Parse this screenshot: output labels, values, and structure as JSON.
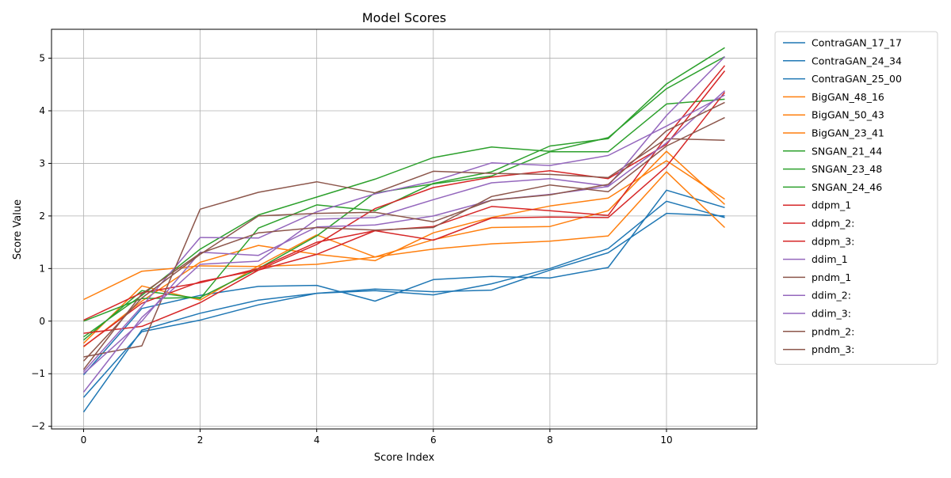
{
  "chart_data": {
    "type": "line",
    "title": "Model Scores",
    "xlabel": "Score Index",
    "ylabel": "Score Value",
    "x": [
      0,
      1,
      2,
      3,
      4,
      5,
      6,
      7,
      8,
      9,
      10,
      11
    ],
    "xlim": [
      -0.55,
      11.55
    ],
    "ylim": [
      -2.05,
      5.55
    ],
    "xticks": [
      0,
      2,
      4,
      6,
      8,
      10
    ],
    "yticks": [
      -2,
      -1,
      0,
      1,
      2,
      3,
      4,
      5
    ],
    "ytick_labels": [
      "−2",
      "−1",
      "0",
      "1",
      "2",
      "3",
      "4",
      "5"
    ],
    "grid": true,
    "legend_placement": "outside right, top",
    "series": [
      {
        "name": "ContraGAN_17_17",
        "color": "#1f77b4",
        "values": [
          -1.73,
          -0.17,
          0.15,
          0.4,
          0.53,
          0.61,
          0.56,
          0.59,
          0.97,
          1.3,
          2.05,
          2.0
        ]
      },
      {
        "name": "ContraGAN_24_34",
        "color": "#1f77b4",
        "values": [
          -1.45,
          -0.2,
          0.02,
          0.31,
          0.53,
          0.58,
          0.5,
          0.71,
          1.0,
          1.38,
          2.28,
          1.97
        ]
      },
      {
        "name": "ContraGAN_25_00",
        "color": "#1f77b4",
        "values": [
          -1.02,
          0.24,
          0.49,
          0.66,
          0.68,
          0.38,
          0.79,
          0.85,
          0.82,
          1.02,
          2.49,
          2.16
        ]
      },
      {
        "name": "BigGAN_48_16",
        "color": "#ff7f0e",
        "values": [
          0.41,
          0.95,
          1.05,
          1.04,
          1.08,
          1.22,
          1.37,
          1.47,
          1.52,
          1.62,
          2.84,
          1.78
        ]
      },
      {
        "name": "BigGAN_50_43",
        "color": "#ff7f0e",
        "values": [
          -0.42,
          0.67,
          0.4,
          1.05,
          1.64,
          1.22,
          1.55,
          1.78,
          1.8,
          2.1,
          3.23,
          2.22
        ]
      },
      {
        "name": "BigGAN_23_41",
        "color": "#ff7f0e",
        "values": [
          -0.49,
          0.38,
          1.12,
          1.44,
          1.27,
          1.15,
          1.68,
          1.97,
          2.19,
          2.34,
          3.05,
          2.32
        ]
      },
      {
        "name": "SNGAN_21_44",
        "color": "#2ca02c",
        "values": [
          -0.36,
          0.58,
          0.43,
          1.77,
          2.21,
          2.1,
          2.62,
          2.84,
          3.33,
          3.47,
          4.51,
          5.2
        ]
      },
      {
        "name": "SNGAN_23_48",
        "color": "#2ca02c",
        "values": [
          -0.3,
          0.49,
          1.37,
          2.02,
          2.36,
          2.7,
          3.11,
          3.31,
          3.23,
          3.49,
          4.42,
          5.03
        ]
      },
      {
        "name": "SNGAN_24_46",
        "color": "#2ca02c",
        "values": [
          0.0,
          0.43,
          0.45,
          1.0,
          1.62,
          2.44,
          2.61,
          2.76,
          3.22,
          3.22,
          4.13,
          4.22
        ]
      },
      {
        "name": "ddpm_1",
        "color": "#d62728",
        "values": [
          0.02,
          0.54,
          0.73,
          1.0,
          1.5,
          1.72,
          1.54,
          1.96,
          1.98,
          1.97,
          2.94,
          4.35
        ]
      },
      {
        "name": "ddpm_2:",
        "color": "#d62728",
        "values": [
          -0.48,
          0.34,
          0.75,
          0.97,
          1.27,
          1.72,
          1.8,
          2.18,
          2.1,
          2.01,
          3.51,
          4.86
        ]
      },
      {
        "name": "ddpm_3:",
        "color": "#d62728",
        "values": [
          -0.23,
          -0.1,
          0.35,
          0.97,
          1.46,
          2.14,
          2.54,
          2.74,
          2.86,
          2.71,
          3.36,
          4.76
        ]
      },
      {
        "name": "ddim_1",
        "color": "#9467bd",
        "values": [
          -0.96,
          0.28,
          1.59,
          1.58,
          2.08,
          2.42,
          2.66,
          3.01,
          2.96,
          3.15,
          3.71,
          4.3
        ]
      },
      {
        "name": "pndm_1",
        "color": "#8c564b",
        "values": [
          -0.68,
          -0.47,
          2.13,
          2.45,
          2.65,
          2.44,
          2.85,
          2.81,
          2.79,
          2.73,
          3.47,
          3.44
        ]
      },
      {
        "name": "ddim_2:",
        "color": "#9467bd",
        "values": [
          -1.35,
          0.07,
          1.08,
          1.14,
          1.94,
          1.97,
          2.31,
          2.63,
          2.71,
          2.57,
          3.91,
          5.03
        ]
      },
      {
        "name": "ddim_3:",
        "color": "#9467bd",
        "values": [
          -1.0,
          0.0,
          1.31,
          1.25,
          1.79,
          1.83,
          2.0,
          2.3,
          2.41,
          2.56,
          3.39,
          4.38
        ]
      },
      {
        "name": "pndm_2:",
        "color": "#8c564b",
        "values": [
          -0.92,
          0.52,
          1.29,
          1.68,
          1.78,
          1.73,
          1.78,
          2.37,
          2.59,
          2.46,
          3.33,
          3.87
        ]
      },
      {
        "name": "pndm_3:",
        "color": "#8c564b",
        "values": [
          -0.76,
          0.44,
          1.27,
          2.0,
          2.05,
          2.07,
          1.89,
          2.3,
          2.4,
          2.6,
          3.62,
          4.16
        ]
      }
    ]
  }
}
